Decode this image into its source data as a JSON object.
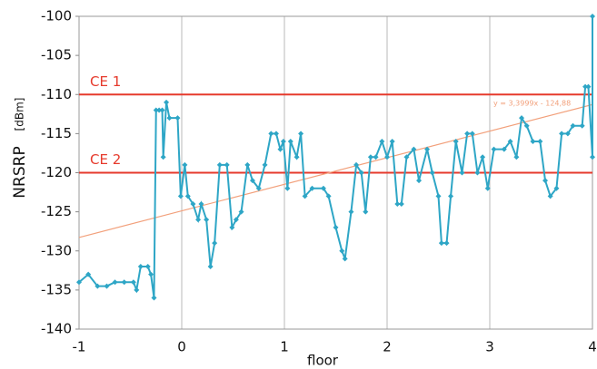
{
  "chart_data": {
    "type": "line",
    "x_label": "floor",
    "y_label": "NRSRP",
    "y_unit": "[dBm]",
    "xlim": [
      -1,
      4
    ],
    "ylim": [
      -140,
      -100
    ],
    "xticks": [
      -1,
      0,
      1,
      2,
      3,
      4
    ],
    "yticks": [
      -140,
      -135,
      -130,
      -125,
      -120,
      -115,
      -110,
      -105,
      -100
    ],
    "grid": "x",
    "series": [
      {
        "color": "#2ea6c6",
        "x": [
          -1,
          -0.91,
          -0.82,
          -0.73,
          -0.65,
          -0.56,
          -0.47,
          -0.44,
          -0.4,
          -0.33,
          -0.3,
          -0.27,
          -0.25,
          -0.22,
          -0.19,
          -0.18,
          -0.15,
          -0.12,
          -0.04,
          -0.01,
          0.03,
          0.06,
          0.11,
          0.16,
          0.19,
          0.24,
          0.28,
          0.32,
          0.37,
          0.44,
          0.49,
          0.53,
          0.58,
          0.64,
          0.69,
          0.75,
          0.81,
          0.87,
          0.92,
          0.96,
          0.99,
          1.03,
          1.06,
          1.12,
          1.16,
          1.2,
          1.27,
          1.38,
          1.43,
          1.5,
          1.56,
          1.59,
          1.65,
          1.7,
          1.75,
          1.79,
          1.84,
          1.89,
          1.95,
          2.0,
          2.05,
          2.1,
          2.14,
          2.19,
          2.26,
          2.31,
          2.39,
          2.44,
          2.5,
          2.53,
          2.58,
          2.62,
          2.67,
          2.73,
          2.78,
          2.83,
          2.88,
          2.93,
          2.98,
          3.04,
          3.14,
          3.2,
          3.26,
          3.31,
          3.36,
          3.42,
          3.49,
          3.54,
          3.59,
          3.65,
          3.7,
          3.76,
          3.81,
          3.9,
          3.93,
          3.96,
          4.0,
          4.0
        ],
        "values": [
          -134,
          -133,
          -134.5,
          -134.5,
          -134,
          -134,
          -134,
          -135,
          -132,
          -132,
          -133,
          -136,
          -112,
          -112,
          -112,
          -118,
          -111,
          -113,
          -113,
          -123,
          -119,
          -123,
          -124,
          -126,
          -124,
          -126,
          -132,
          -129,
          -119,
          -119,
          -127,
          -126,
          -125,
          -119,
          -121,
          -122,
          -119,
          -115,
          -115,
          -117,
          -116,
          -122,
          -116,
          -118,
          -115,
          -123,
          -122,
          -122,
          -123,
          -127,
          -130,
          -131,
          -125,
          -119,
          -120,
          -125,
          -118,
          -118,
          -116,
          -118,
          -116,
          -124,
          -124,
          -118,
          -117,
          -121,
          -117,
          -120,
          -123,
          -129,
          -129,
          -123,
          -116,
          -120,
          -115,
          -115,
          -120,
          -118,
          -122,
          -117,
          -117,
          -116,
          -118,
          -113,
          -114,
          -116,
          -116,
          -121,
          -123,
          -122,
          -115,
          -115,
          -114,
          -114,
          -109,
          -109,
          -118,
          -100
        ]
      }
    ],
    "reference_lines": [
      {
        "label": "CE 1",
        "value": -110,
        "color": "#e63a2c"
      },
      {
        "label": "CE 2",
        "value": -120,
        "color": "#e63a2c"
      }
    ],
    "trendline": {
      "label": "y = 3,3999x - 124,88",
      "slope": 3.3999,
      "intercept": -124.88,
      "color": "#f2a07b"
    }
  }
}
